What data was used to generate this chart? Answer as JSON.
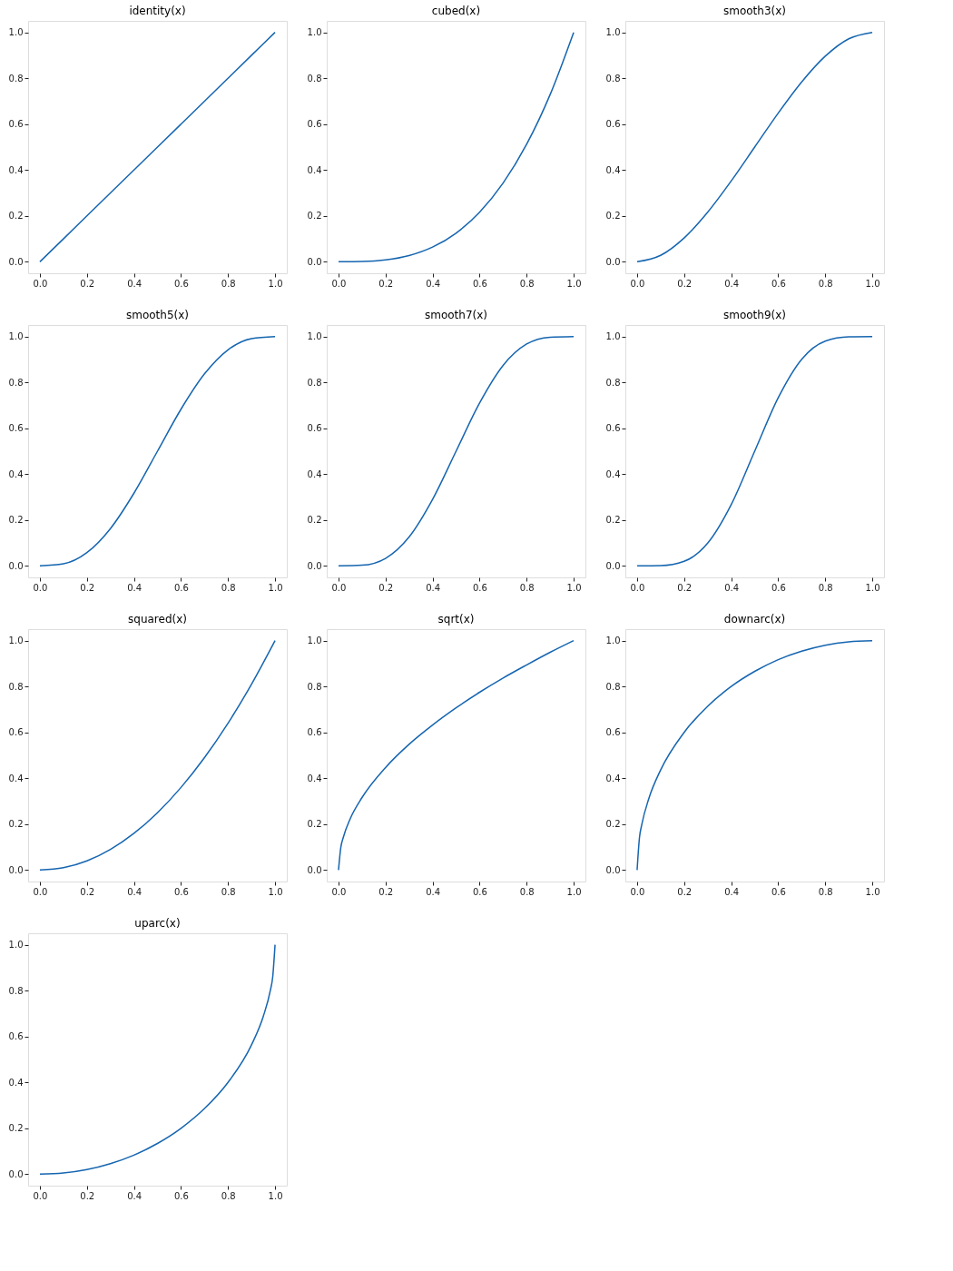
{
  "chart_data": [
    {
      "type": "line",
      "title": "identity(x)",
      "x": [
        0,
        0.1,
        0.2,
        0.3,
        0.4,
        0.5,
        0.6,
        0.7,
        0.8,
        0.9,
        1
      ],
      "xlim": [
        -0.05,
        1.05
      ],
      "ylim": [
        -0.05,
        1.05
      ],
      "xticks": [
        {
          "value": 0,
          "label": "0.0"
        },
        {
          "value": 0.2,
          "label": "0.2"
        },
        {
          "value": 0.4,
          "label": "0.4"
        },
        {
          "value": 0.6,
          "label": "0.6"
        },
        {
          "value": 0.8,
          "label": "0.8"
        },
        {
          "value": 1,
          "label": "1.0"
        }
      ],
      "yticks": [
        {
          "value": 0,
          "label": "0.0"
        },
        {
          "value": 0.2,
          "label": "0.2"
        },
        {
          "value": 0.4,
          "label": "0.4"
        },
        {
          "value": 0.6,
          "label": "0.6"
        },
        {
          "value": 0.8,
          "label": "0.8"
        },
        {
          "value": 1,
          "label": "1.0"
        }
      ],
      "grid": false,
      "line_style": "solid",
      "marker": "none",
      "series": [
        {
          "color": "#1565b0",
          "values": [
            0,
            0.1,
            0.2,
            0.3,
            0.4,
            0.5,
            0.6,
            0.7,
            0.8,
            0.9,
            1
          ]
        }
      ]
    },
    {
      "type": "line",
      "title": "cubed(x)",
      "x": [
        0,
        0.1,
        0.2,
        0.3,
        0.4,
        0.5,
        0.6,
        0.7,
        0.8,
        0.9,
        1
      ],
      "xlim": [
        -0.05,
        1.05
      ],
      "ylim": [
        -0.05,
        1.05
      ],
      "xticks": [
        {
          "value": 0,
          "label": "0.0"
        },
        {
          "value": 0.2,
          "label": "0.2"
        },
        {
          "value": 0.4,
          "label": "0.4"
        },
        {
          "value": 0.6,
          "label": "0.6"
        },
        {
          "value": 0.8,
          "label": "0.8"
        },
        {
          "value": 1,
          "label": "1.0"
        }
      ],
      "yticks": [
        {
          "value": 0,
          "label": "0.0"
        },
        {
          "value": 0.2,
          "label": "0.2"
        },
        {
          "value": 0.4,
          "label": "0.4"
        },
        {
          "value": 0.6,
          "label": "0.6"
        },
        {
          "value": 0.8,
          "label": "0.8"
        },
        {
          "value": 1,
          "label": "1.0"
        }
      ],
      "grid": false,
      "line_style": "solid",
      "marker": "none",
      "series": [
        {
          "color": "#1565b0",
          "values": [
            0,
            0.001,
            0.008,
            0.027,
            0.064,
            0.125,
            0.216,
            0.343,
            0.512,
            0.729,
            1
          ]
        }
      ]
    },
    {
      "type": "line",
      "title": "smooth3(x)",
      "x": [
        0,
        0.1,
        0.2,
        0.3,
        0.4,
        0.5,
        0.6,
        0.7,
        0.8,
        0.9,
        1
      ],
      "xlim": [
        -0.05,
        1.05
      ],
      "ylim": [
        -0.05,
        1.05
      ],
      "xticks": [
        {
          "value": 0,
          "label": "0.0"
        },
        {
          "value": 0.2,
          "label": "0.2"
        },
        {
          "value": 0.4,
          "label": "0.4"
        },
        {
          "value": 0.6,
          "label": "0.6"
        },
        {
          "value": 0.8,
          "label": "0.8"
        },
        {
          "value": 1,
          "label": "1.0"
        }
      ],
      "yticks": [
        {
          "value": 0,
          "label": "0.0"
        },
        {
          "value": 0.2,
          "label": "0.2"
        },
        {
          "value": 0.4,
          "label": "0.4"
        },
        {
          "value": 0.6,
          "label": "0.6"
        },
        {
          "value": 0.8,
          "label": "0.8"
        },
        {
          "value": 1,
          "label": "1.0"
        }
      ],
      "grid": false,
      "line_style": "solid",
      "marker": "none",
      "series": [
        {
          "color": "#1565b0",
          "values": [
            0,
            0.028,
            0.104,
            0.216,
            0.352,
            0.5,
            0.648,
            0.784,
            0.896,
            0.972,
            1
          ]
        }
      ]
    },
    {
      "type": "line",
      "title": "smooth5(x)",
      "x": [
        0,
        0.1,
        0.2,
        0.3,
        0.4,
        0.5,
        0.6,
        0.7,
        0.8,
        0.9,
        1
      ],
      "xlim": [
        -0.05,
        1.05
      ],
      "ylim": [
        -0.05,
        1.05
      ],
      "xticks": [
        {
          "value": 0,
          "label": "0.0"
        },
        {
          "value": 0.2,
          "label": "0.2"
        },
        {
          "value": 0.4,
          "label": "0.4"
        },
        {
          "value": 0.6,
          "label": "0.6"
        },
        {
          "value": 0.8,
          "label": "0.8"
        },
        {
          "value": 1,
          "label": "1.0"
        }
      ],
      "yticks": [
        {
          "value": 0,
          "label": "0.0"
        },
        {
          "value": 0.2,
          "label": "0.2"
        },
        {
          "value": 0.4,
          "label": "0.4"
        },
        {
          "value": 0.6,
          "label": "0.6"
        },
        {
          "value": 0.8,
          "label": "0.8"
        },
        {
          "value": 1,
          "label": "1.0"
        }
      ],
      "grid": false,
      "line_style": "solid",
      "marker": "none",
      "series": [
        {
          "color": "#1565b0",
          "values": [
            0,
            0.009,
            0.058,
            0.163,
            0.317,
            0.5,
            0.683,
            0.837,
            0.942,
            0.991,
            1
          ]
        }
      ]
    },
    {
      "type": "line",
      "title": "smooth7(x)",
      "x": [
        0,
        0.1,
        0.2,
        0.3,
        0.4,
        0.5,
        0.6,
        0.7,
        0.8,
        0.9,
        1
      ],
      "xlim": [
        -0.05,
        1.05
      ],
      "ylim": [
        -0.05,
        1.05
      ],
      "xticks": [
        {
          "value": 0,
          "label": "0.0"
        },
        {
          "value": 0.2,
          "label": "0.2"
        },
        {
          "value": 0.4,
          "label": "0.4"
        },
        {
          "value": 0.6,
          "label": "0.6"
        },
        {
          "value": 0.8,
          "label": "0.8"
        },
        {
          "value": 1,
          "label": "1.0"
        }
      ],
      "yticks": [
        {
          "value": 0,
          "label": "0.0"
        },
        {
          "value": 0.2,
          "label": "0.2"
        },
        {
          "value": 0.4,
          "label": "0.4"
        },
        {
          "value": 0.6,
          "label": "0.6"
        },
        {
          "value": 0.8,
          "label": "0.8"
        },
        {
          "value": 1,
          "label": "1.0"
        }
      ],
      "grid": false,
      "line_style": "solid",
      "marker": "none",
      "series": [
        {
          "color": "#1565b0",
          "values": [
            0,
            0.003,
            0.033,
            0.126,
            0.29,
            0.5,
            0.71,
            0.874,
            0.967,
            0.997,
            1
          ]
        }
      ]
    },
    {
      "type": "line",
      "title": "smooth9(x)",
      "x": [
        0,
        0.1,
        0.2,
        0.3,
        0.4,
        0.5,
        0.6,
        0.7,
        0.8,
        0.9,
        1
      ],
      "xlim": [
        -0.05,
        1.05
      ],
      "ylim": [
        -0.05,
        1.05
      ],
      "xticks": [
        {
          "value": 0,
          "label": "0.0"
        },
        {
          "value": 0.2,
          "label": "0.2"
        },
        {
          "value": 0.4,
          "label": "0.4"
        },
        {
          "value": 0.6,
          "label": "0.6"
        },
        {
          "value": 0.8,
          "label": "0.8"
        },
        {
          "value": 1,
          "label": "1.0"
        }
      ],
      "yticks": [
        {
          "value": 0,
          "label": "0.0"
        },
        {
          "value": 0.2,
          "label": "0.2"
        },
        {
          "value": 0.4,
          "label": "0.4"
        },
        {
          "value": 0.6,
          "label": "0.6"
        },
        {
          "value": 0.8,
          "label": "0.8"
        },
        {
          "value": 1,
          "label": "1.0"
        }
      ],
      "grid": false,
      "line_style": "solid",
      "marker": "none",
      "series": [
        {
          "color": "#1565b0",
          "values": [
            0,
            0.001,
            0.02,
            0.099,
            0.267,
            0.5,
            0.733,
            0.901,
            0.98,
            0.999,
            1
          ]
        }
      ]
    },
    {
      "type": "line",
      "title": "squared(x)",
      "x": [
        0,
        0.1,
        0.2,
        0.3,
        0.4,
        0.5,
        0.6,
        0.7,
        0.8,
        0.9,
        1
      ],
      "xlim": [
        -0.05,
        1.05
      ],
      "ylim": [
        -0.05,
        1.05
      ],
      "xticks": [
        {
          "value": 0,
          "label": "0.0"
        },
        {
          "value": 0.2,
          "label": "0.2"
        },
        {
          "value": 0.4,
          "label": "0.4"
        },
        {
          "value": 0.6,
          "label": "0.6"
        },
        {
          "value": 0.8,
          "label": "0.8"
        },
        {
          "value": 1,
          "label": "1.0"
        }
      ],
      "yticks": [
        {
          "value": 0,
          "label": "0.0"
        },
        {
          "value": 0.2,
          "label": "0.2"
        },
        {
          "value": 0.4,
          "label": "0.4"
        },
        {
          "value": 0.6,
          "label": "0.6"
        },
        {
          "value": 0.8,
          "label": "0.8"
        },
        {
          "value": 1,
          "label": "1.0"
        }
      ],
      "grid": false,
      "line_style": "solid",
      "marker": "none",
      "series": [
        {
          "color": "#1565b0",
          "values": [
            0,
            0.01,
            0.04,
            0.09,
            0.16,
            0.25,
            0.36,
            0.49,
            0.64,
            0.81,
            1
          ]
        }
      ]
    },
    {
      "type": "line",
      "title": "sqrt(x)",
      "x": [
        0,
        0.01,
        0.02,
        0.05,
        0.1,
        0.2,
        0.3,
        0.4,
        0.5,
        0.6,
        0.7,
        0.8,
        0.9,
        1
      ],
      "xlim": [
        -0.05,
        1.05
      ],
      "ylim": [
        -0.05,
        1.05
      ],
      "xticks": [
        {
          "value": 0,
          "label": "0.0"
        },
        {
          "value": 0.2,
          "label": "0.2"
        },
        {
          "value": 0.4,
          "label": "0.4"
        },
        {
          "value": 0.6,
          "label": "0.6"
        },
        {
          "value": 0.8,
          "label": "0.8"
        },
        {
          "value": 1,
          "label": "1.0"
        }
      ],
      "yticks": [
        {
          "value": 0,
          "label": "0.0"
        },
        {
          "value": 0.2,
          "label": "0.2"
        },
        {
          "value": 0.4,
          "label": "0.4"
        },
        {
          "value": 0.6,
          "label": "0.6"
        },
        {
          "value": 0.8,
          "label": "0.8"
        },
        {
          "value": 1,
          "label": "1.0"
        }
      ],
      "grid": false,
      "line_style": "solid",
      "marker": "none",
      "series": [
        {
          "color": "#1565b0",
          "values": [
            0,
            0.1,
            0.141,
            0.224,
            0.316,
            0.447,
            0.548,
            0.632,
            0.707,
            0.775,
            0.837,
            0.894,
            0.949,
            1
          ]
        }
      ]
    },
    {
      "type": "line",
      "title": "downarc(x)",
      "x": [
        0,
        0.01,
        0.02,
        0.05,
        0.1,
        0.2,
        0.3,
        0.4,
        0.5,
        0.6,
        0.7,
        0.8,
        0.9,
        1
      ],
      "xlim": [
        -0.05,
        1.05
      ],
      "ylim": [
        -0.05,
        1.05
      ],
      "xticks": [
        {
          "value": 0,
          "label": "0.0"
        },
        {
          "value": 0.2,
          "label": "0.2"
        },
        {
          "value": 0.4,
          "label": "0.4"
        },
        {
          "value": 0.6,
          "label": "0.6"
        },
        {
          "value": 0.8,
          "label": "0.8"
        },
        {
          "value": 1,
          "label": "1.0"
        }
      ],
      "yticks": [
        {
          "value": 0,
          "label": "0.0"
        },
        {
          "value": 0.2,
          "label": "0.2"
        },
        {
          "value": 0.4,
          "label": "0.4"
        },
        {
          "value": 0.6,
          "label": "0.6"
        },
        {
          "value": 0.8,
          "label": "0.8"
        },
        {
          "value": 1,
          "label": "1.0"
        }
      ],
      "grid": false,
      "line_style": "solid",
      "marker": "none",
      "series": [
        {
          "color": "#1565b0",
          "values": [
            0,
            0.141,
            0.199,
            0.312,
            0.436,
            0.6,
            0.714,
            0.8,
            0.866,
            0.917,
            0.954,
            0.98,
            0.995,
            1
          ]
        }
      ]
    },
    {
      "type": "line",
      "title": "uparc(x)",
      "x": [
        0,
        0.1,
        0.2,
        0.3,
        0.4,
        0.5,
        0.6,
        0.7,
        0.8,
        0.9,
        0.95,
        0.98,
        0.99,
        1
      ],
      "xlim": [
        -0.05,
        1.05
      ],
      "ylim": [
        -0.05,
        1.05
      ],
      "xticks": [
        {
          "value": 0,
          "label": "0.0"
        },
        {
          "value": 0.2,
          "label": "0.2"
        },
        {
          "value": 0.4,
          "label": "0.4"
        },
        {
          "value": 0.6,
          "label": "0.6"
        },
        {
          "value": 0.8,
          "label": "0.8"
        },
        {
          "value": 1,
          "label": "1.0"
        }
      ],
      "yticks": [
        {
          "value": 0,
          "label": "0.0"
        },
        {
          "value": 0.2,
          "label": "0.2"
        },
        {
          "value": 0.4,
          "label": "0.4"
        },
        {
          "value": 0.6,
          "label": "0.6"
        },
        {
          "value": 0.8,
          "label": "0.8"
        },
        {
          "value": 1,
          "label": "1.0"
        }
      ],
      "grid": false,
      "line_style": "solid",
      "marker": "none",
      "series": [
        {
          "color": "#1565b0",
          "values": [
            0,
            0.005,
            0.02,
            0.046,
            0.083,
            0.134,
            0.2,
            0.286,
            0.4,
            0.564,
            0.688,
            0.801,
            0.859,
            1
          ]
        }
      ]
    }
  ]
}
